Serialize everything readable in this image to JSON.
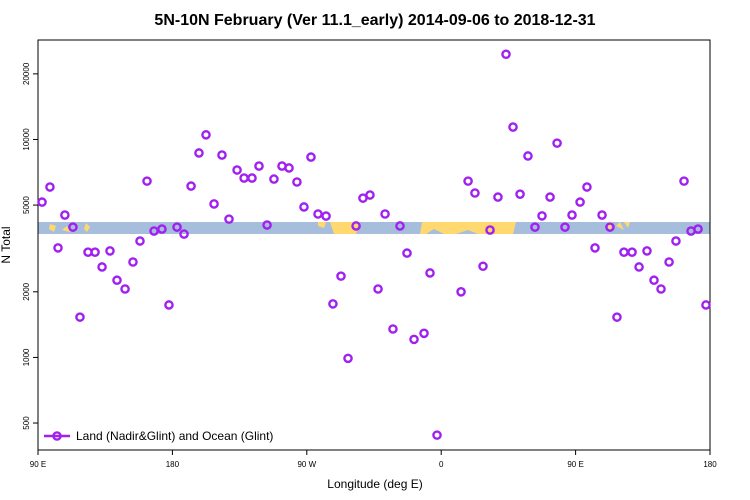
{
  "chart_data": {
    "type": "scatter",
    "title": "5N-10N February (Ver 11.1_early)   2014-09-06 to 2018-12-31",
    "x_label": "Longitude (deg E)",
    "y_label": "N Total",
    "xlim": [
      90,
      540
    ],
    "xticks": [
      {
        "value": 90,
        "label": "90 E"
      },
      180,
      {
        "value": 270,
        "label": "90 W"
      },
      {
        "value": 360,
        "label": "0"
      },
      {
        "value": 450,
        "label": "90 E"
      },
      {
        "value": 540,
        "label": "180"
      }
    ],
    "ylim": [
      376,
      28600
    ],
    "yticks": [
      500,
      1000,
      2000,
      5000,
      10000,
      20000
    ],
    "log_y": true,
    "grid": false,
    "legend": "bottom-left",
    "x": [
      92.7,
      98,
      103.4,
      108,
      113.4,
      118.1,
      123.5,
      128.2,
      132.9,
      138.2,
      142.9,
      148.3,
      153.6,
      158.3,
      163,
      167.7,
      173,
      177.7,
      183.1,
      187.8,
      192.5,
      197.8,
      202.5,
      207.9,
      213.2,
      217.9,
      223.3,
      228,
      233.3,
      238,
      243.4,
      248,
      253.4,
      258.1,
      263.4,
      268.1,
      272.8,
      277.5,
      282.9,
      287.5,
      292.9,
      297.6,
      303,
      307.6,
      312.3,
      317.7,
      322.4,
      327.7,
      332.4,
      337.1,
      341.8,
      348.5,
      352.5,
      357.2,
      373.3,
      378,
      382.6,
      388,
      392.7,
      398,
      403.4,
      408.1,
      412.8,
      418.1,
      422.8,
      427.5,
      432.9,
      437.6,
      442.9,
      447.6,
      453,
      457.6,
      463,
      467.7,
      473,
      477.7,
      482.4,
      487.8,
      492.5,
      497.8,
      502.5,
      507.2,
      512.6,
      517.2,
      522.6,
      527.3,
      532,
      537.3
    ],
    "series": [
      {
        "name": "Land (Nadir&Glint) and Ocean (Glint)",
        "color": "#a020f0",
        "values": [
          5160,
          6050,
          3180,
          4500,
          3960,
          1530,
          3040,
          3040,
          2600,
          3080,
          2260,
          2060,
          2740,
          3420,
          6440,
          3800,
          3880,
          1740,
          3960,
          3680,
          6110,
          8670,
          10500,
          5060,
          8480,
          4310,
          7240,
          6650,
          6650,
          7550,
          4050,
          6580,
          7550,
          7400,
          6380,
          4900,
          8300,
          4550,
          4450,
          1760,
          2360,
          990,
          4010,
          5380,
          5560,
          2060,
          4550,
          1350,
          4010,
          3010,
          1210,
          1290,
          2440,
          440,
          2000,
          6440,
          5680,
          2620,
          3840,
          5440,
          24600,
          11400,
          5610,
          8400,
          3960,
          4460,
          5440,
          9620,
          3960,
          4500,
          5160,
          6050,
          3180,
          4500,
          3960,
          1530,
          3040,
          3040,
          2600,
          3080,
          2260,
          2060,
          2740,
          3420,
          6440,
          3800,
          3880,
          1740
        ]
      }
    ]
  }
}
